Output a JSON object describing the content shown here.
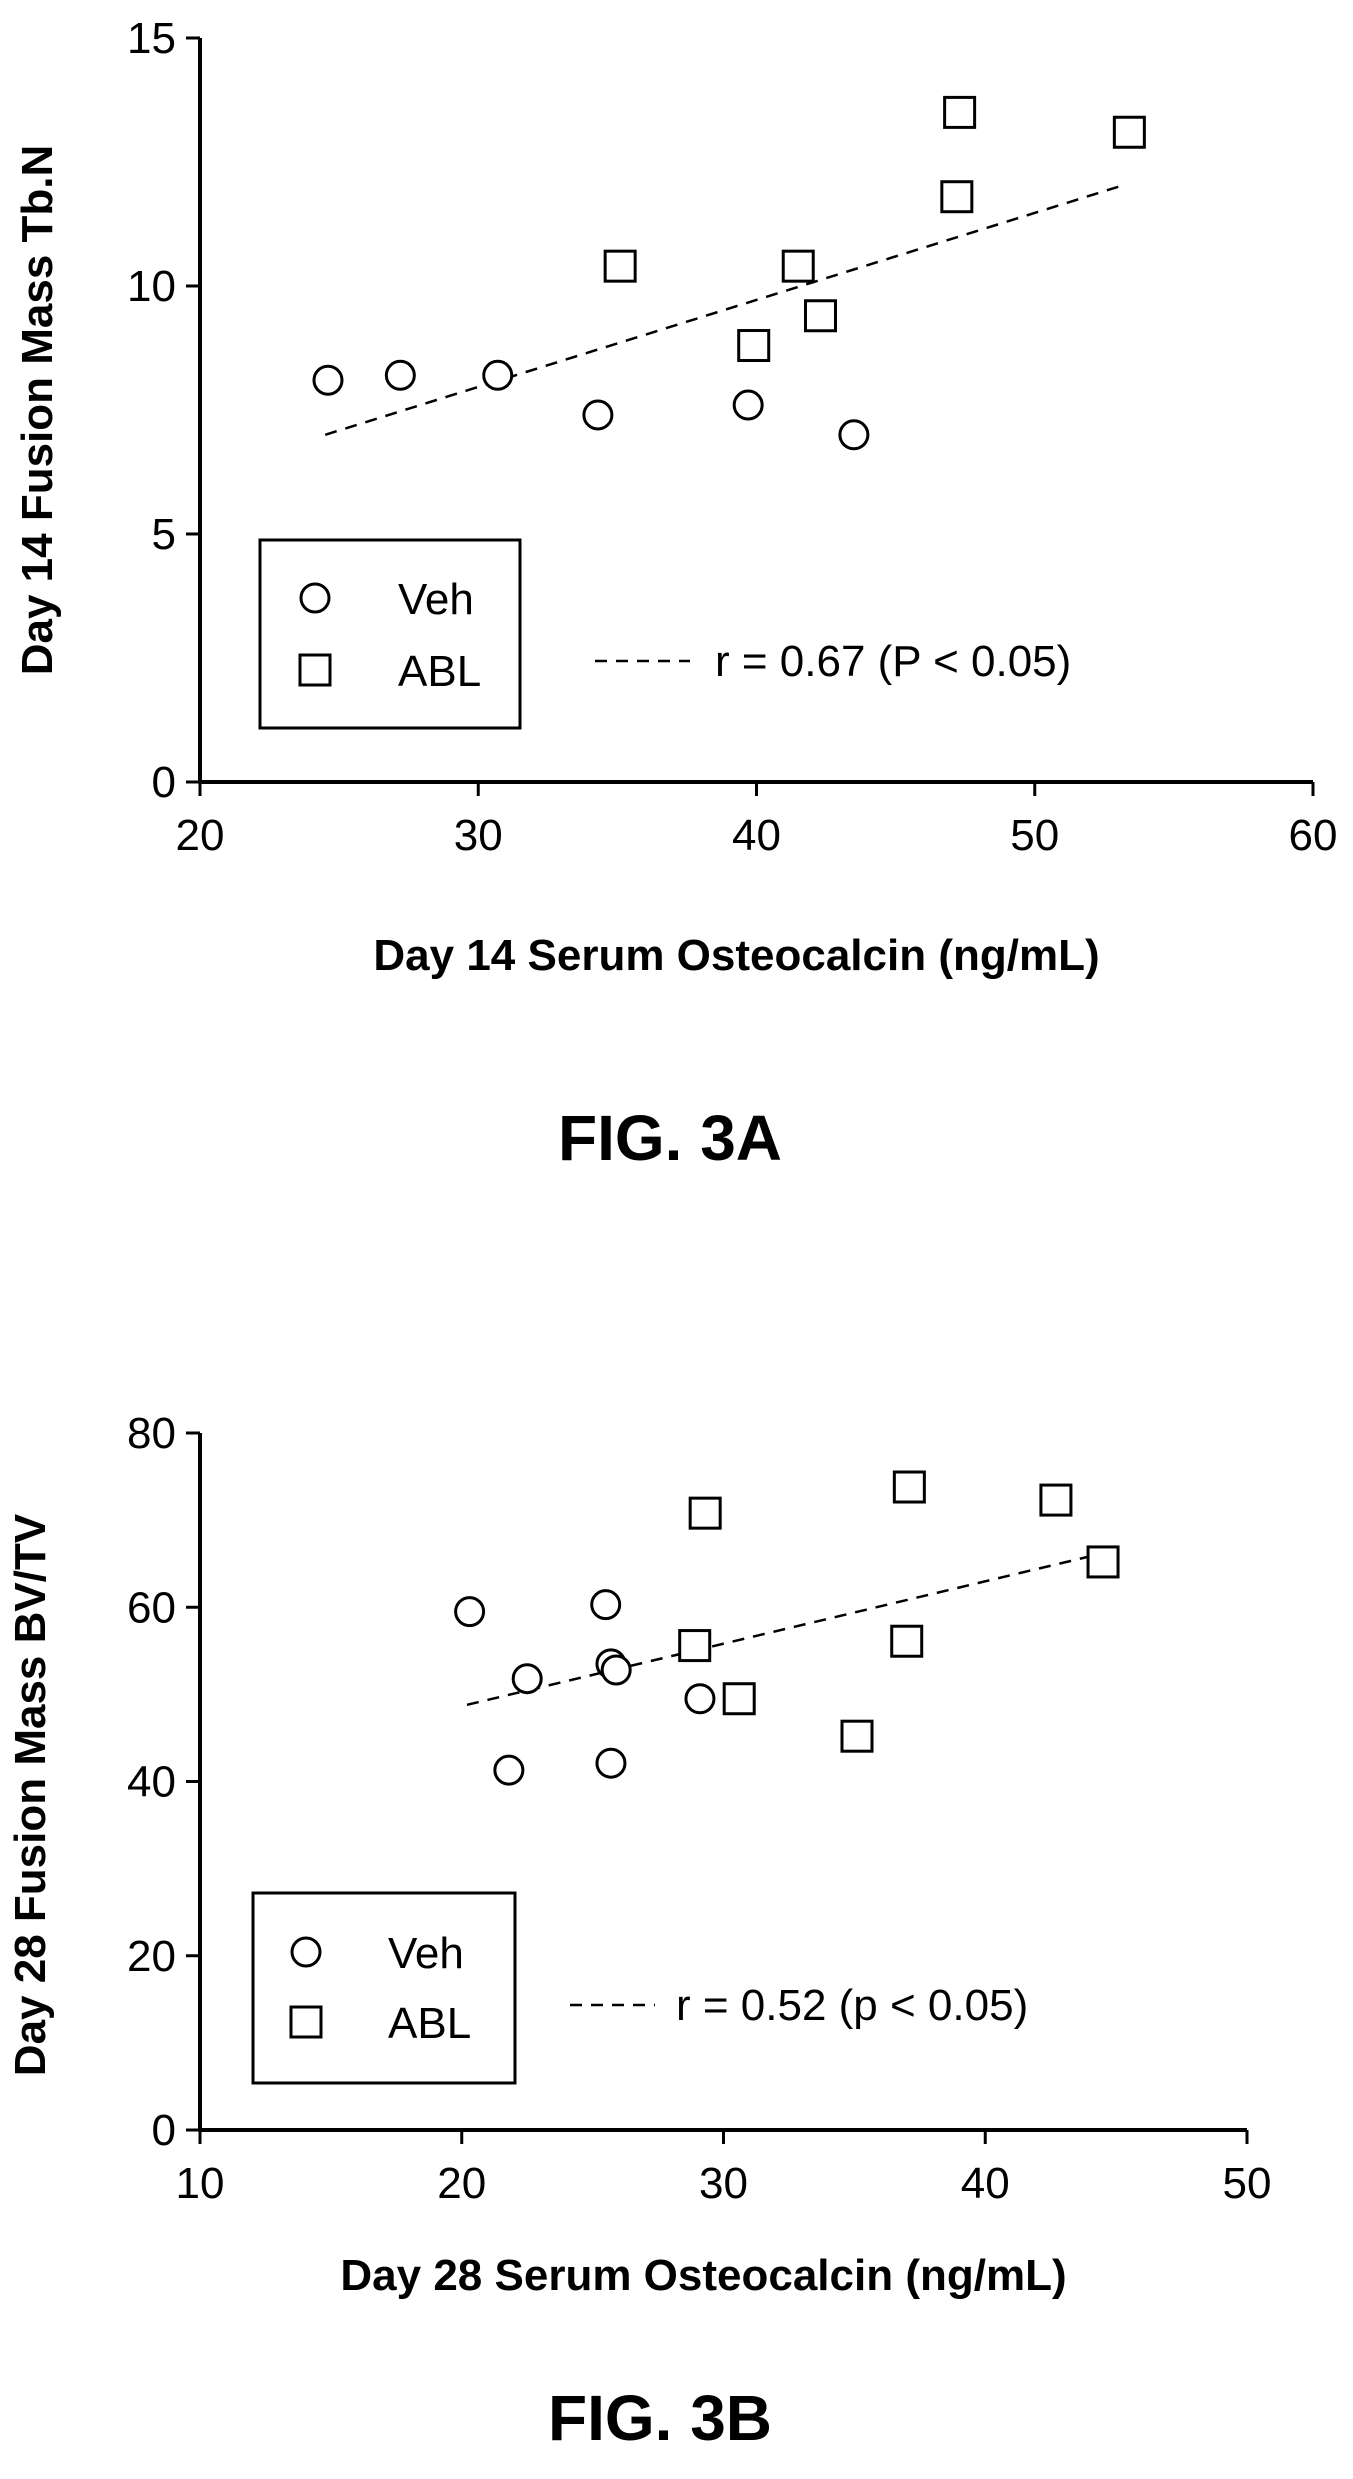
{
  "chart_data": [
    {
      "type": "scatter",
      "caption": "FIG. 3A",
      "xlabel": "Day 14 Serum Osteocalcin (ng/mL)",
      "ylabel": "Day 14 Fusion Mass Tb.N",
      "xlim": [
        20,
        60
      ],
      "ylim": [
        0,
        15
      ],
      "xticks": [
        "20",
        "30",
        "40",
        "50",
        "60"
      ],
      "yticks": [
        "0",
        "5",
        "10",
        "15"
      ],
      "grid": false,
      "legend_position": "bottom-left",
      "annotation": "r = 0.67 (P < 0.05)",
      "fit_line": {
        "x": [
          24.5,
          53.0
        ],
        "y": [
          7.0,
          12.0
        ]
      },
      "series": [
        {
          "name": "Veh",
          "marker": "circle",
          "x": [
            24.6,
            27.2,
            30.7,
            34.3,
            39.7,
            43.5
          ],
          "y": [
            8.1,
            8.2,
            8.2,
            7.4,
            7.6,
            7.0
          ]
        },
        {
          "name": "ABL",
          "marker": "square",
          "x": [
            35.1,
            39.9,
            41.5,
            42.3,
            47.2,
            47.3,
            53.4
          ],
          "y": [
            10.4,
            8.8,
            10.4,
            9.4,
            11.8,
            13.5,
            13.1
          ]
        }
      ]
    },
    {
      "type": "scatter",
      "caption": "FIG. 3B",
      "xlabel": "Day 28 Serum Osteocalcin (ng/mL)",
      "ylabel": "Day 28 Fusion Mass BV/TV",
      "xlim": [
        10,
        50
      ],
      "ylim": [
        0,
        80
      ],
      "xticks": [
        "10",
        "20",
        "30",
        "40",
        "50"
      ],
      "yticks": [
        "0",
        "20",
        "40",
        "60",
        "80"
      ],
      "grid": false,
      "legend_position": "bottom-left",
      "annotation": "r = 0.52 (p < 0.05)",
      "fit_line": {
        "x": [
          20.2,
          44.5
        ],
        "y": [
          48.8,
          66.2
        ]
      },
      "series": [
        {
          "name": "Veh",
          "marker": "circle",
          "x": [
            20.3,
            21.8,
            22.5,
            25.5,
            25.7,
            25.7,
            25.9,
            29.1
          ],
          "y": [
            59.5,
            41.3,
            51.8,
            60.3,
            53.5,
            42.1,
            52.8,
            49.5
          ]
        },
        {
          "name": "ABL",
          "marker": "square",
          "x": [
            28.9,
            29.3,
            30.6,
            35.1,
            37.0,
            37.1,
            42.7,
            44.5
          ],
          "y": [
            55.6,
            70.8,
            49.5,
            45.2,
            56.1,
            73.8,
            72.3,
            65.2
          ]
        }
      ]
    }
  ]
}
